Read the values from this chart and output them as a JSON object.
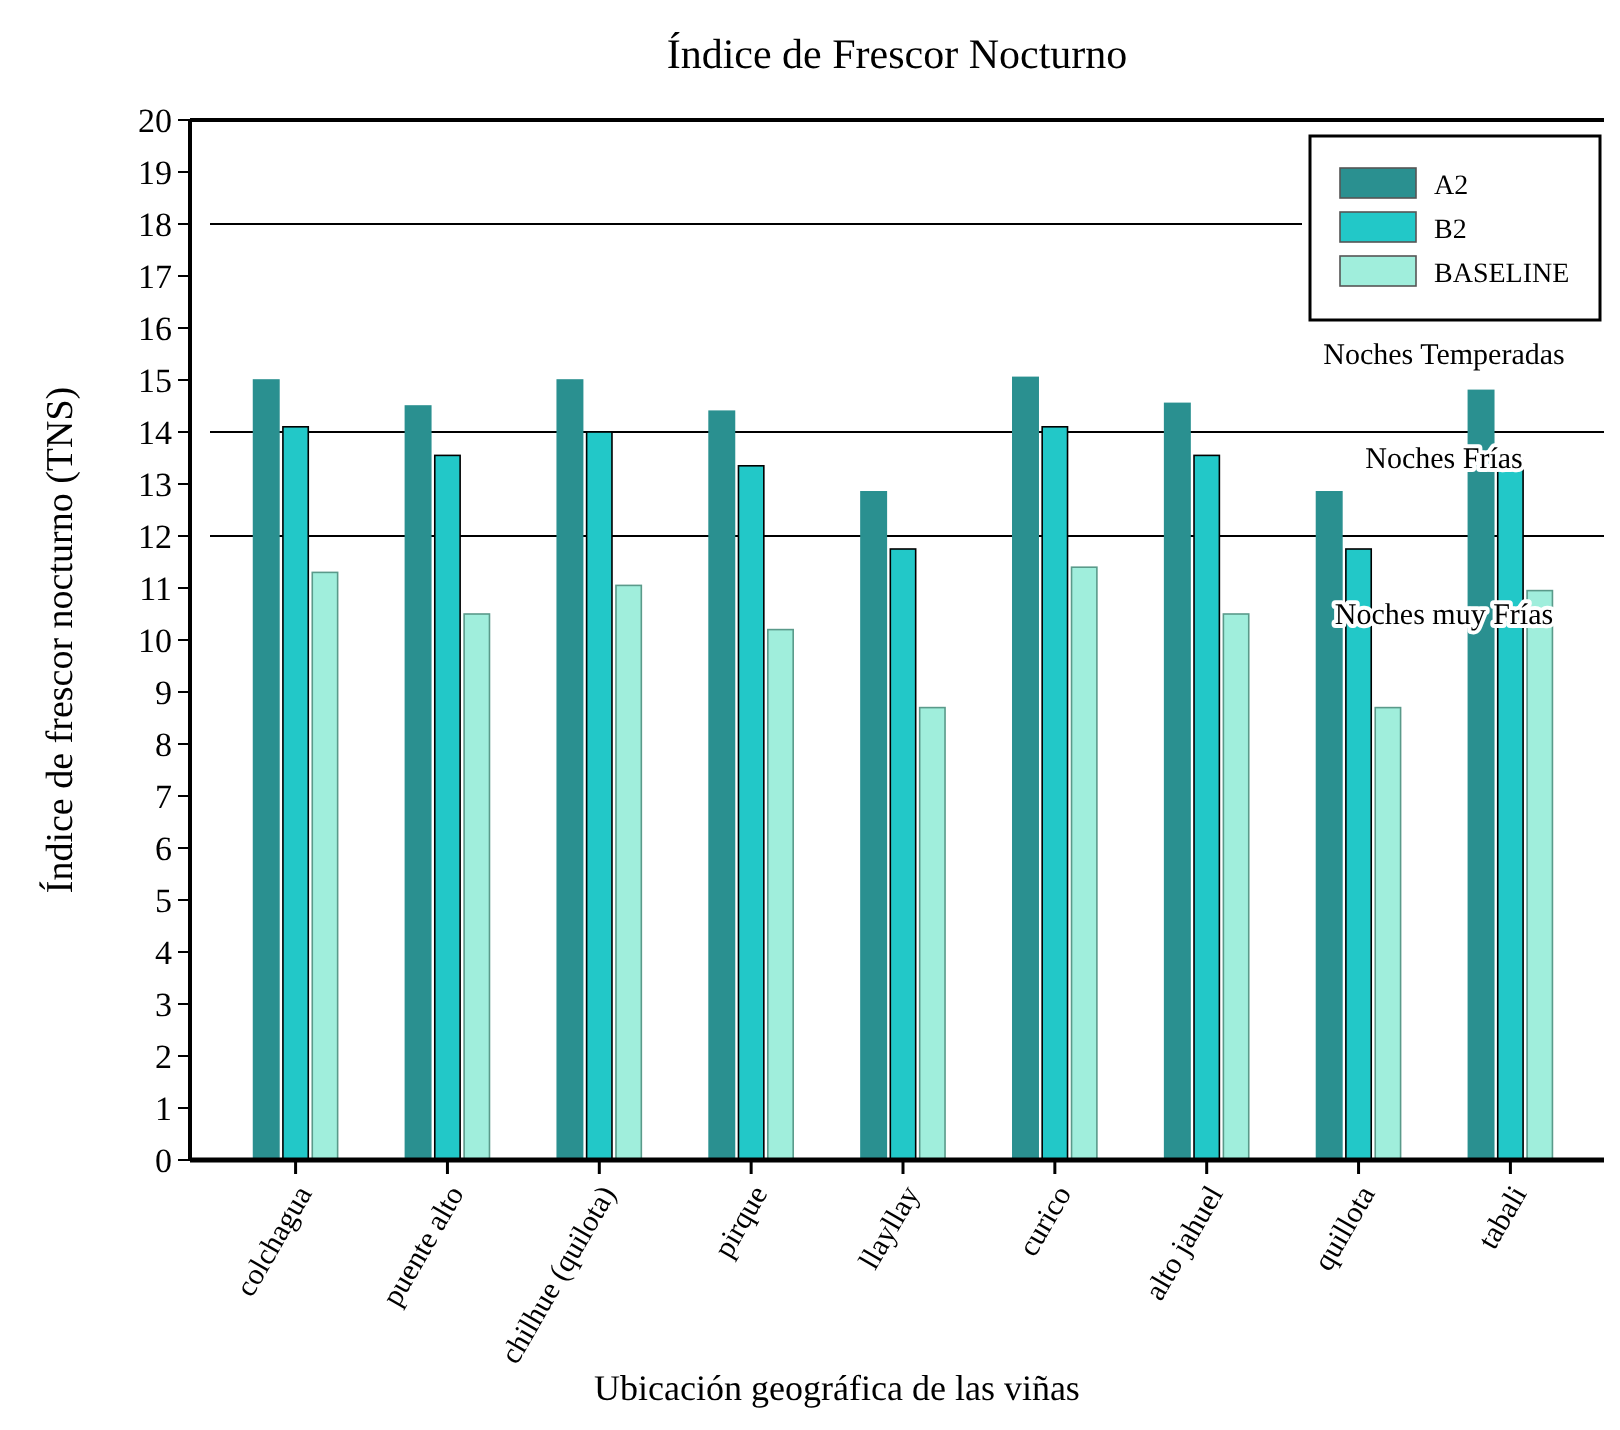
{
  "chart_data": {
    "type": "bar",
    "title": "Índice de Frescor Nocturno",
    "xlabel": "Ubicación geográfica de las viñas",
    "ylabel": "Índice de frescor nocturno (TNS)",
    "categories": [
      "colchagua",
      "puente alto",
      "chilhue (quilota)",
      "pirque",
      "llayllay",
      "curico",
      "alto jahuel",
      "quillota",
      "tabali"
    ],
    "series": [
      {
        "name": "A2",
        "color": "#2a9090",
        "values": [
          15.0,
          14.5,
          15.0,
          14.4,
          12.85,
          15.05,
          14.55,
          12.85,
          14.8
        ]
      },
      {
        "name": "B2",
        "color": "#22c8c8",
        "values": [
          14.1,
          13.55,
          14.0,
          13.35,
          11.75,
          14.1,
          13.55,
          11.75,
          13.55
        ]
      },
      {
        "name": "BASELINE",
        "color": "#a0eedc",
        "values": [
          11.3,
          10.5,
          11.05,
          10.2,
          8.7,
          11.4,
          10.5,
          8.7,
          10.95
        ]
      }
    ],
    "ylim": [
      0,
      20
    ],
    "yticks": [
      0,
      1,
      2,
      3,
      4,
      5,
      6,
      7,
      8,
      9,
      10,
      11,
      12,
      13,
      14,
      15,
      16,
      17,
      18,
      19,
      20
    ],
    "ref_lines": [
      {
        "axis": "y",
        "value": 18,
        "label": null,
        "color": "#000000"
      },
      {
        "axis": "y",
        "value": 14,
        "label": "Noches Temperadas",
        "color": "#000000"
      },
      {
        "axis": "y",
        "value": 12,
        "label": "Noches Frías",
        "color": "#000000"
      }
    ],
    "annotations": [
      "Noches muy Frías"
    ],
    "grid": false,
    "legend": "top right"
  }
}
